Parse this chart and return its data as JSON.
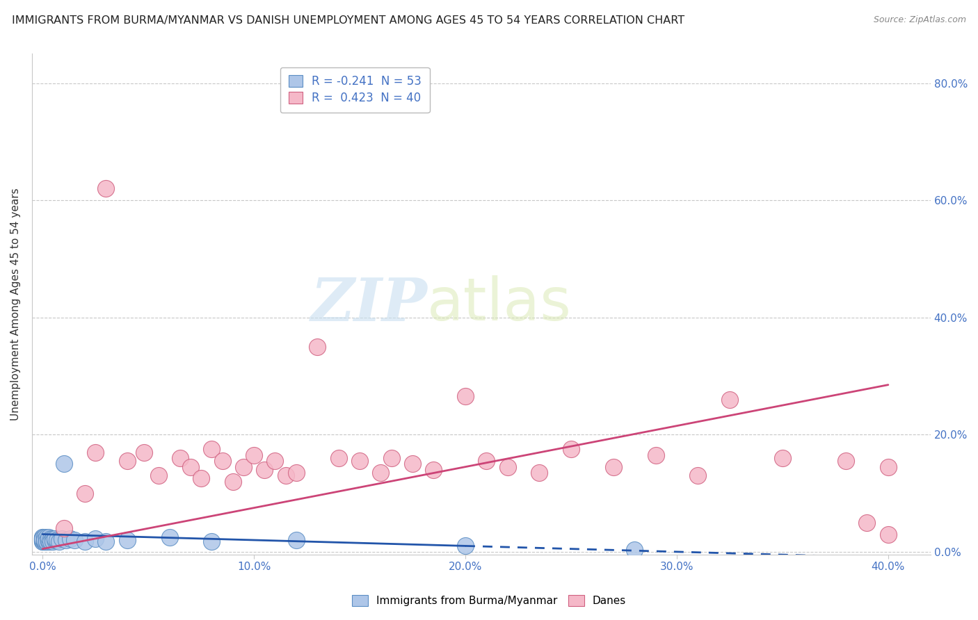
{
  "title": "IMMIGRANTS FROM BURMA/MYANMAR VS DANISH UNEMPLOYMENT AMONG AGES 45 TO 54 YEARS CORRELATION CHART",
  "source": "Source: ZipAtlas.com",
  "ylabel_left": "Unemployment Among Ages 45 to 54 years",
  "legend_labels": [
    "Immigrants from Burma/Myanmar",
    "Danes"
  ],
  "legend_r": [
    -0.241,
    0.423
  ],
  "legend_n": [
    53,
    40
  ],
  "scatter_blue": {
    "x": [
      0.0,
      0.0,
      0.0,
      0.0,
      0.0,
      0.0,
      0.0,
      0.0,
      0.0,
      0.0,
      0.001,
      0.001,
      0.001,
      0.001,
      0.001,
      0.001,
      0.001,
      0.001,
      0.002,
      0.002,
      0.002,
      0.002,
      0.002,
      0.002,
      0.003,
      0.003,
      0.003,
      0.003,
      0.003,
      0.004,
      0.004,
      0.004,
      0.005,
      0.005,
      0.005,
      0.006,
      0.006,
      0.007,
      0.008,
      0.009,
      0.01,
      0.011,
      0.013,
      0.015,
      0.02,
      0.025,
      0.03,
      0.04,
      0.06,
      0.08,
      0.12,
      0.2,
      0.28
    ],
    "y": [
      0.02,
      0.022,
      0.018,
      0.025,
      0.02,
      0.022,
      0.018,
      0.025,
      0.02,
      0.022,
      0.02,
      0.022,
      0.018,
      0.02,
      0.022,
      0.018,
      0.025,
      0.02,
      0.02,
      0.022,
      0.018,
      0.02,
      0.025,
      0.018,
      0.02,
      0.022,
      0.018,
      0.02,
      0.025,
      0.02,
      0.022,
      0.018,
      0.02,
      0.022,
      0.018,
      0.02,
      0.022,
      0.02,
      0.018,
      0.022,
      0.15,
      0.02,
      0.022,
      0.02,
      0.018,
      0.022,
      0.018,
      0.02,
      0.025,
      0.018,
      0.02,
      0.01,
      0.003
    ]
  },
  "scatter_pink": {
    "x": [
      0.01,
      0.02,
      0.025,
      0.03,
      0.04,
      0.048,
      0.055,
      0.065,
      0.07,
      0.075,
      0.08,
      0.085,
      0.09,
      0.095,
      0.1,
      0.105,
      0.11,
      0.115,
      0.12,
      0.13,
      0.14,
      0.15,
      0.16,
      0.165,
      0.175,
      0.185,
      0.2,
      0.21,
      0.22,
      0.235,
      0.25,
      0.27,
      0.29,
      0.31,
      0.325,
      0.35,
      0.38,
      0.4,
      0.4,
      0.39
    ],
    "y": [
      0.04,
      0.1,
      0.17,
      0.62,
      0.155,
      0.17,
      0.13,
      0.16,
      0.145,
      0.125,
      0.175,
      0.155,
      0.12,
      0.145,
      0.165,
      0.14,
      0.155,
      0.13,
      0.135,
      0.35,
      0.16,
      0.155,
      0.135,
      0.16,
      0.15,
      0.14,
      0.265,
      0.155,
      0.145,
      0.135,
      0.175,
      0.145,
      0.165,
      0.13,
      0.26,
      0.16,
      0.155,
      0.145,
      0.03,
      0.05
    ]
  },
  "trendline_blue_solid": {
    "x": [
      0.0,
      0.2
    ],
    "y": [
      0.03,
      0.01
    ]
  },
  "trendline_blue_dashed": {
    "x": [
      0.2,
      0.4
    ],
    "y": [
      0.01,
      -0.01
    ]
  },
  "trendline_pink": {
    "x": [
      0.0,
      0.4
    ],
    "y": [
      0.005,
      0.285
    ]
  },
  "xlim": [
    -0.005,
    0.42
  ],
  "ylim": [
    -0.005,
    0.85
  ],
  "xtick_vals": [
    0.0,
    0.1,
    0.2,
    0.3,
    0.4
  ],
  "ytick_vals": [
    0.0,
    0.2,
    0.4,
    0.6,
    0.8
  ],
  "color_blue_fill": "#aec6e8",
  "color_blue_edge": "#5b8ec4",
  "color_pink_fill": "#f5b8c8",
  "color_pink_edge": "#d06080",
  "color_trendline_blue": "#2255aa",
  "color_trendline_pink": "#cc4477",
  "color_text": "#4472c4",
  "color_axis_text": "#333333",
  "watermark_zip": "ZIP",
  "watermark_atlas": "atlas",
  "background_color": "#ffffff",
  "grid_color": "#c8c8c8",
  "title_fontsize": 11.5,
  "tick_fontsize": 11,
  "ylabel_fontsize": 11
}
